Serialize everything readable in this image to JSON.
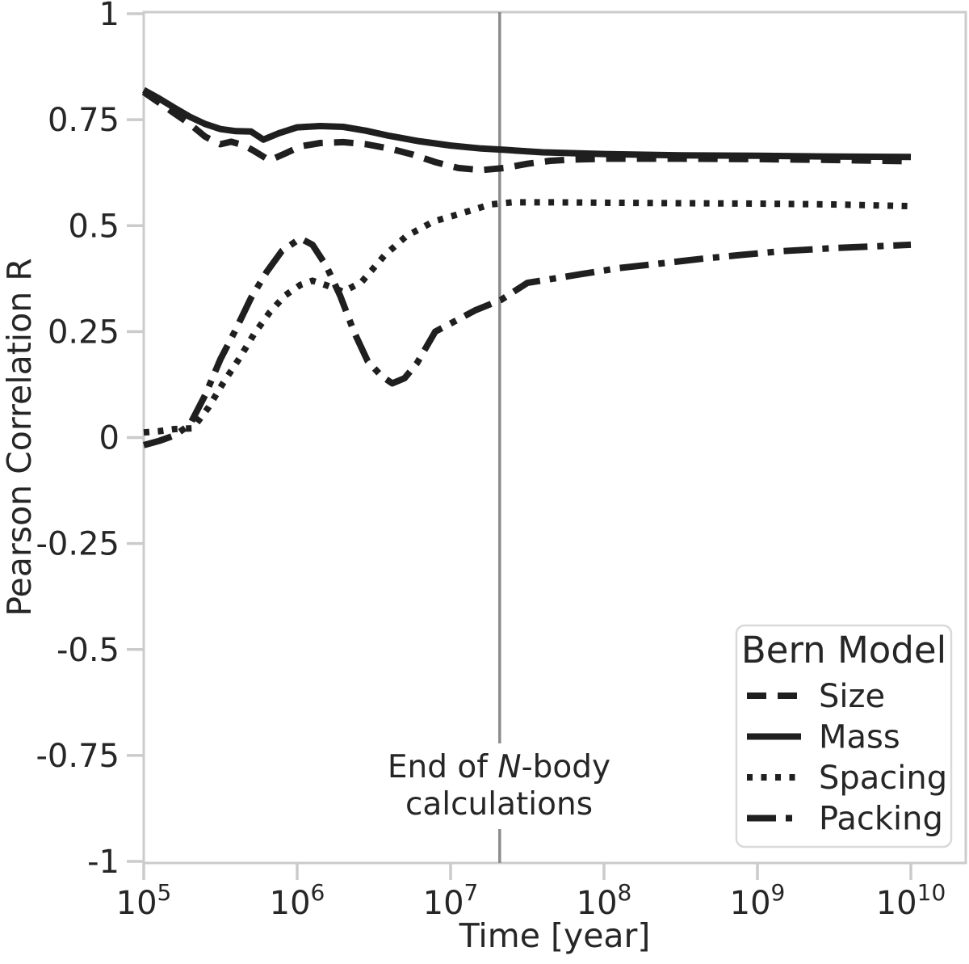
{
  "axes": {
    "x_label": "Time [year]",
    "y_label": "Pearson Correlation R",
    "x_ticks": [
      {
        "base": "10",
        "exp": "5",
        "log10": 5
      },
      {
        "base": "10",
        "exp": "6",
        "log10": 6
      },
      {
        "base": "10",
        "exp": "7",
        "log10": 7
      },
      {
        "base": "10",
        "exp": "8",
        "log10": 8
      },
      {
        "base": "10",
        "exp": "9",
        "log10": 9
      },
      {
        "base": "10",
        "exp": "10",
        "log10": 10
      }
    ],
    "y_ticks": [
      {
        "label": "1",
        "value": 1
      },
      {
        "label": "0.75",
        "value": 0.75
      },
      {
        "label": "0.5",
        "value": 0.5
      },
      {
        "label": "0.25",
        "value": 0.25
      },
      {
        "label": "0",
        "value": 0
      },
      {
        "label": "-0.25",
        "value": -0.25
      },
      {
        "label": "-0.5",
        "value": -0.5
      },
      {
        "label": "-0.75",
        "value": -0.75
      },
      {
        "label": "-1",
        "value": -1
      }
    ]
  },
  "annotation": {
    "l1a": "End of ",
    "l1b": "N",
    "l1c": "-body",
    "line2": "calculations"
  },
  "legend": {
    "title": "Bern Model",
    "entries": [
      {
        "label": "Size",
        "line_style": "dashed"
      },
      {
        "label": "Mass",
        "line_style": "solid"
      },
      {
        "label": "Spacing",
        "line_style": "dotted"
      },
      {
        "label": "Packing",
        "line_style": "dashdot"
      }
    ]
  },
  "colors": {
    "line": "#1f1f1f",
    "spine": "#cbcbcb",
    "tick": "#cbcbcb",
    "text": "#262626",
    "vline": "#8c8c8c",
    "legend_border": "#d9d9d9",
    "background": "#ffffff"
  },
  "chart_data": {
    "type": "line",
    "title": "",
    "xlabel": "Time [year]",
    "ylabel": "Pearson Correlation R",
    "x_axis": {
      "scale": "log",
      "unit": "year",
      "range_log10": [
        5,
        10.36
      ],
      "tick_exponents": [
        5,
        6,
        7,
        8,
        9,
        10
      ]
    },
    "y_axis": {
      "range": [
        -1,
        1
      ],
      "tick_step": 0.25
    },
    "grid": false,
    "legend_title": "Bern Model",
    "legend_position": "lower right",
    "vline": {
      "log10_x": 7.32,
      "label": "End of N-body calculations"
    },
    "series": [
      {
        "name": "Size",
        "line_style": "dashed",
        "points_log10t_R": [
          [
            5.0,
            0.815
          ],
          [
            5.1,
            0.79
          ],
          [
            5.2,
            0.765
          ],
          [
            5.3,
            0.74
          ],
          [
            5.4,
            0.71
          ],
          [
            5.5,
            0.692
          ],
          [
            5.57,
            0.698
          ],
          [
            5.65,
            0.69
          ],
          [
            5.72,
            0.676
          ],
          [
            5.82,
            0.654
          ],
          [
            5.92,
            0.67
          ],
          [
            6.02,
            0.687
          ],
          [
            6.15,
            0.695
          ],
          [
            6.3,
            0.697
          ],
          [
            6.45,
            0.692
          ],
          [
            6.6,
            0.682
          ],
          [
            6.75,
            0.668
          ],
          [
            6.9,
            0.65
          ],
          [
            7.05,
            0.636
          ],
          [
            7.2,
            0.631
          ],
          [
            7.35,
            0.636
          ],
          [
            7.5,
            0.646
          ],
          [
            7.65,
            0.653
          ],
          [
            7.8,
            0.656
          ],
          [
            8.0,
            0.658
          ],
          [
            8.5,
            0.658
          ],
          [
            9.0,
            0.657
          ],
          [
            9.5,
            0.655
          ],
          [
            10.0,
            0.652
          ]
        ]
      },
      {
        "name": "Mass",
        "line_style": "solid",
        "points_log10t_R": [
          [
            5.0,
            0.82
          ],
          [
            5.1,
            0.8
          ],
          [
            5.2,
            0.778
          ],
          [
            5.3,
            0.757
          ],
          [
            5.4,
            0.74
          ],
          [
            5.5,
            0.728
          ],
          [
            5.6,
            0.723
          ],
          [
            5.7,
            0.722
          ],
          [
            5.78,
            0.703
          ],
          [
            5.88,
            0.718
          ],
          [
            6.0,
            0.732
          ],
          [
            6.15,
            0.735
          ],
          [
            6.3,
            0.733
          ],
          [
            6.45,
            0.724
          ],
          [
            6.6,
            0.712
          ],
          [
            6.8,
            0.699
          ],
          [
            7.0,
            0.689
          ],
          [
            7.2,
            0.682
          ],
          [
            7.35,
            0.679
          ],
          [
            7.6,
            0.673
          ],
          [
            8.0,
            0.669
          ],
          [
            8.5,
            0.666
          ],
          [
            9.0,
            0.665
          ],
          [
            9.5,
            0.663
          ],
          [
            10.0,
            0.662
          ]
        ]
      },
      {
        "name": "Spacing",
        "line_style": "dotted",
        "points_log10t_R": [
          [
            5.0,
            0.012
          ],
          [
            5.1,
            0.015
          ],
          [
            5.2,
            0.02
          ],
          [
            5.32,
            0.022
          ],
          [
            5.42,
            0.07
          ],
          [
            5.52,
            0.13
          ],
          [
            5.62,
            0.185
          ],
          [
            5.72,
            0.245
          ],
          [
            5.82,
            0.295
          ],
          [
            5.92,
            0.335
          ],
          [
            6.02,
            0.36
          ],
          [
            6.1,
            0.37
          ],
          [
            6.2,
            0.358
          ],
          [
            6.3,
            0.344
          ],
          [
            6.42,
            0.367
          ],
          [
            6.57,
            0.43
          ],
          [
            6.71,
            0.475
          ],
          [
            6.89,
            0.51
          ],
          [
            7.08,
            0.53
          ],
          [
            7.26,
            0.55
          ],
          [
            7.4,
            0.555
          ],
          [
            7.7,
            0.555
          ],
          [
            8.0,
            0.554
          ],
          [
            8.5,
            0.553
          ],
          [
            9.0,
            0.552
          ],
          [
            9.5,
            0.55
          ],
          [
            10.0,
            0.546
          ]
        ]
      },
      {
        "name": "Packing",
        "line_style": "dashdot",
        "points_log10t_R": [
          [
            5.0,
            -0.018
          ],
          [
            5.1,
            -0.008
          ],
          [
            5.2,
            0.005
          ],
          [
            5.3,
            0.03
          ],
          [
            5.4,
            0.1
          ],
          [
            5.5,
            0.185
          ],
          [
            5.6,
            0.255
          ],
          [
            5.7,
            0.33
          ],
          [
            5.8,
            0.39
          ],
          [
            5.9,
            0.44
          ],
          [
            6.02,
            0.47
          ],
          [
            6.1,
            0.455
          ],
          [
            6.19,
            0.405
          ],
          [
            6.28,
            0.335
          ],
          [
            6.37,
            0.25
          ],
          [
            6.46,
            0.18
          ],
          [
            6.55,
            0.145
          ],
          [
            6.62,
            0.128
          ],
          [
            6.7,
            0.14
          ],
          [
            6.78,
            0.175
          ],
          [
            6.9,
            0.25
          ],
          [
            7.03,
            0.275
          ],
          [
            7.16,
            0.3
          ],
          [
            7.33,
            0.325
          ],
          [
            7.5,
            0.365
          ],
          [
            7.84,
            0.385
          ],
          [
            8.1,
            0.4
          ],
          [
            8.4,
            0.412
          ],
          [
            8.64,
            0.422
          ],
          [
            8.9,
            0.431
          ],
          [
            9.17,
            0.44
          ],
          [
            9.5,
            0.447
          ],
          [
            10.0,
            0.455
          ]
        ]
      }
    ]
  }
}
